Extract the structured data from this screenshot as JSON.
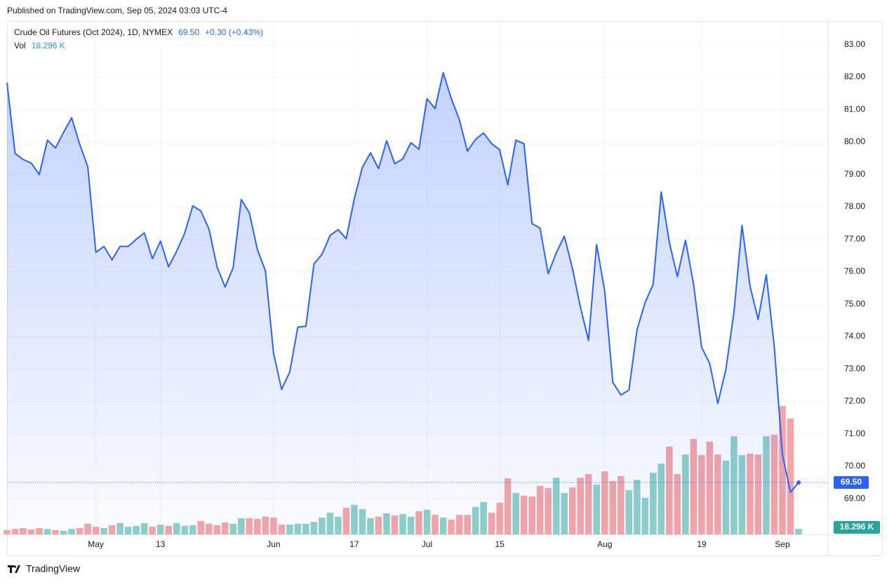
{
  "header": {
    "published": "Published on TradingView.com, Sep 05, 2024 03:03 UTC-4"
  },
  "footer": {
    "brand": "TradingView"
  },
  "chart_data": {
    "type": "line",
    "title": "Crude Oil Futures (Oct 2024), 1D, NYMEX",
    "last_label": "69.50",
    "change_label": "+0.30 (+0.43%)",
    "color": "#2962ff",
    "categories": [
      null,
      null,
      null,
      null,
      null,
      null,
      null,
      null,
      null,
      null,
      null,
      "May",
      null,
      null,
      null,
      null,
      null,
      null,
      null,
      "13",
      null,
      null,
      null,
      null,
      null,
      null,
      null,
      null,
      null,
      null,
      null,
      null,
      null,
      "Jun",
      null,
      null,
      null,
      null,
      null,
      null,
      null,
      null,
      null,
      "17",
      null,
      null,
      null,
      null,
      null,
      null,
      null,
      null,
      "Jul",
      null,
      null,
      null,
      null,
      null,
      null,
      null,
      null,
      "15",
      null,
      null,
      null,
      null,
      null,
      null,
      null,
      null,
      null,
      null,
      null,
      null,
      "Aug",
      null,
      null,
      null,
      null,
      null,
      null,
      null,
      null,
      null,
      null,
      null,
      "19",
      null,
      null,
      null,
      null,
      null,
      null,
      null,
      null,
      null,
      "Sep",
      null,
      null
    ],
    "values": [
      81.83,
      79.65,
      79.46,
      79.35,
      79.0,
      80.06,
      79.82,
      80.3,
      80.75,
      79.93,
      79.24,
      76.6,
      76.78,
      76.37,
      76.78,
      76.78,
      77.0,
      77.2,
      76.4,
      76.95,
      76.15,
      76.63,
      77.19,
      78.03,
      77.88,
      77.32,
      76.15,
      75.53,
      76.13,
      78.23,
      77.82,
      76.69,
      76.02,
      73.49,
      72.37,
      72.91,
      74.29,
      74.32,
      76.24,
      76.54,
      77.12,
      77.3,
      77.02,
      78.25,
      79.22,
      79.67,
      79.18,
      80.04,
      79.33,
      79.48,
      79.98,
      79.78,
      81.34,
      81.03,
      82.14,
      81.34,
      80.69,
      79.72,
      80.08,
      80.28,
      79.95,
      79.76,
      78.68,
      80.06,
      79.95,
      77.49,
      77.34,
      75.94,
      76.58,
      77.1,
      76.11,
      74.9,
      73.88,
      76.84,
      75.4,
      72.59,
      72.2,
      72.35,
      74.21,
      75.05,
      75.61,
      78.46,
      76.91,
      75.85,
      76.97,
      75.61,
      73.67,
      73.17,
      71.94,
      72.98,
      74.75,
      77.43,
      75.55,
      74.53,
      75.91,
      73.67,
      70.36,
      69.2,
      69.5
    ],
    "volume": {
      "label": "Vol",
      "last_label": "18.296 K",
      "up_color": "#8ed0c9",
      "down_color": "#f5a5a5",
      "values": [
        14,
        18,
        21,
        16,
        21,
        18,
        14,
        12,
        18,
        21,
        35,
        25,
        21,
        30,
        37,
        25,
        28,
        37,
        25,
        32,
        28,
        37,
        28,
        30,
        44,
        35,
        30,
        39,
        35,
        53,
        53,
        51,
        58,
        55,
        32,
        32,
        35,
        35,
        41,
        55,
        71,
        58,
        87,
        97,
        83,
        53,
        58,
        69,
        62,
        67,
        58,
        76,
        81,
        64,
        55,
        48,
        64,
        64,
        90,
        106,
        71,
        104,
        184,
        136,
        127,
        124,
        159,
        152,
        186,
        136,
        154,
        186,
        198,
        163,
        207,
        175,
        191,
        145,
        179,
        120,
        202,
        232,
        288,
        198,
        262,
        313,
        260,
        304,
        262,
        242,
        322,
        260,
        265,
        262,
        322,
        327,
        421,
        380,
        18.296
      ]
    },
    "ylim": [
      67.9,
      83.71
    ],
    "yticks": [
      {
        "value": 69,
        "label": "69.00"
      },
      {
        "value": 70,
        "label": "70.00"
      },
      {
        "value": 71,
        "label": "71.00"
      },
      {
        "value": 72,
        "label": "72.00"
      },
      {
        "value": 73,
        "label": "73.00"
      },
      {
        "value": 74,
        "label": "74.00"
      },
      {
        "value": 75,
        "label": "75.00"
      },
      {
        "value": 76,
        "label": "76.00"
      },
      {
        "value": 77,
        "label": "77.00"
      },
      {
        "value": 78,
        "label": "78.00"
      },
      {
        "value": 79,
        "label": "79.00"
      },
      {
        "value": 80,
        "label": "80.00"
      },
      {
        "value": 81,
        "label": "81.00"
      },
      {
        "value": 82,
        "label": "82.00"
      },
      {
        "value": 83,
        "label": "83.00"
      }
    ],
    "grid": true
  }
}
